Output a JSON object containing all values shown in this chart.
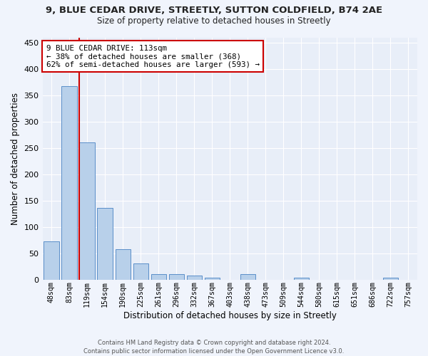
{
  "title": "9, BLUE CEDAR DRIVE, STREETLY, SUTTON COLDFIELD, B74 2AE",
  "subtitle": "Size of property relative to detached houses in Streetly",
  "xlabel": "Distribution of detached houses by size in Streetly",
  "ylabel": "Number of detached properties",
  "bin_labels": [
    "48sqm",
    "83sqm",
    "119sqm",
    "154sqm",
    "190sqm",
    "225sqm",
    "261sqm",
    "296sqm",
    "332sqm",
    "367sqm",
    "403sqm",
    "438sqm",
    "473sqm",
    "509sqm",
    "544sqm",
    "580sqm",
    "615sqm",
    "651sqm",
    "686sqm",
    "722sqm",
    "757sqm"
  ],
  "bar_values": [
    72,
    368,
    261,
    136,
    58,
    30,
    10,
    10,
    8,
    4,
    0,
    10,
    0,
    0,
    4,
    0,
    0,
    0,
    0,
    4,
    0
  ],
  "bar_color": "#b8d0ea",
  "bar_edge_color": "#5b8fc9",
  "highlight_color": "#cc0000",
  "annotation_line1": "9 BLUE CEDAR DRIVE: 113sqm",
  "annotation_line2": "← 38% of detached houses are smaller (368)",
  "annotation_line3": "62% of semi-detached houses are larger (593) →",
  "annotation_box_color": "#ffffff",
  "annotation_box_edge": "#cc0000",
  "ylim": [
    0,
    460
  ],
  "yticks": [
    0,
    50,
    100,
    150,
    200,
    250,
    300,
    350,
    400,
    450
  ],
  "bg_color": "#e8eef8",
  "fig_bg_color": "#f0f4fc",
  "footer_line1": "Contains HM Land Registry data © Crown copyright and database right 2024.",
  "footer_line2": "Contains public sector information licensed under the Open Government Licence v3.0."
}
